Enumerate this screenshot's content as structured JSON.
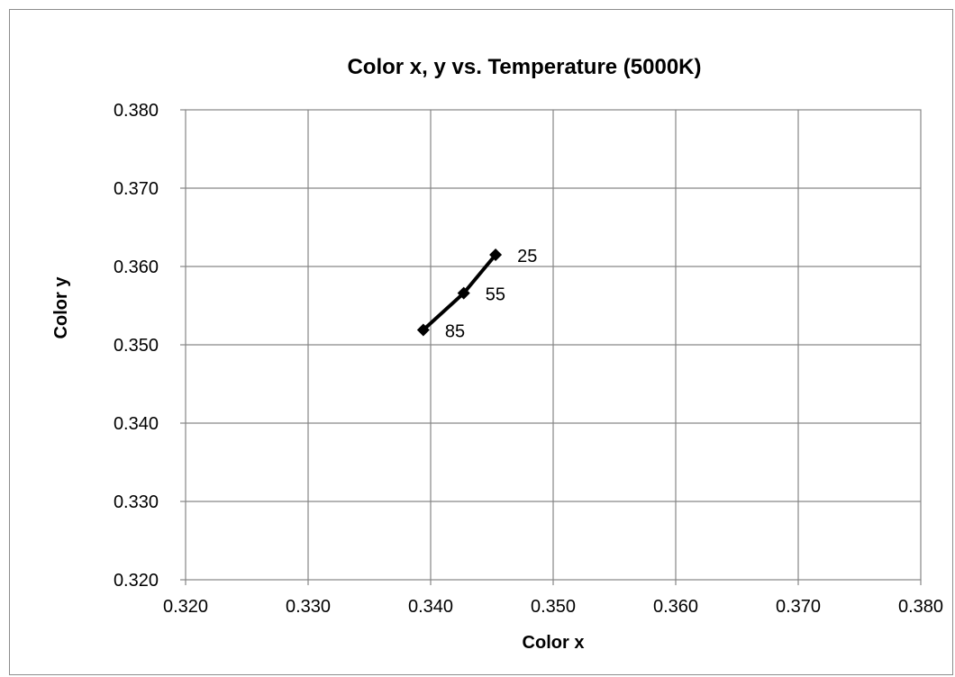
{
  "chart_data": {
    "type": "scatter",
    "title": "Color  x, y vs. Temperature (5000K)",
    "xlabel": "Color x",
    "ylabel": "Color  y",
    "xlim": [
      0.32,
      0.38
    ],
    "ylim": [
      0.32,
      0.38
    ],
    "xticks": [
      "0.320",
      "0.330",
      "0.340",
      "0.350",
      "0.360",
      "0.370",
      "0.380"
    ],
    "yticks": [
      "0.380",
      "0.370",
      "0.360",
      "0.350",
      "0.340",
      "0.330",
      "0.320"
    ],
    "grid": true,
    "legend": "none",
    "series": [
      {
        "points": [
          {
            "x": 0.3453,
            "y": 0.3615,
            "label": "25"
          },
          {
            "x": 0.3427,
            "y": 0.3566,
            "label": "55"
          },
          {
            "x": 0.3394,
            "y": 0.3519,
            "label": "85"
          }
        ],
        "color": "#000000",
        "marker": "diamond"
      }
    ]
  }
}
